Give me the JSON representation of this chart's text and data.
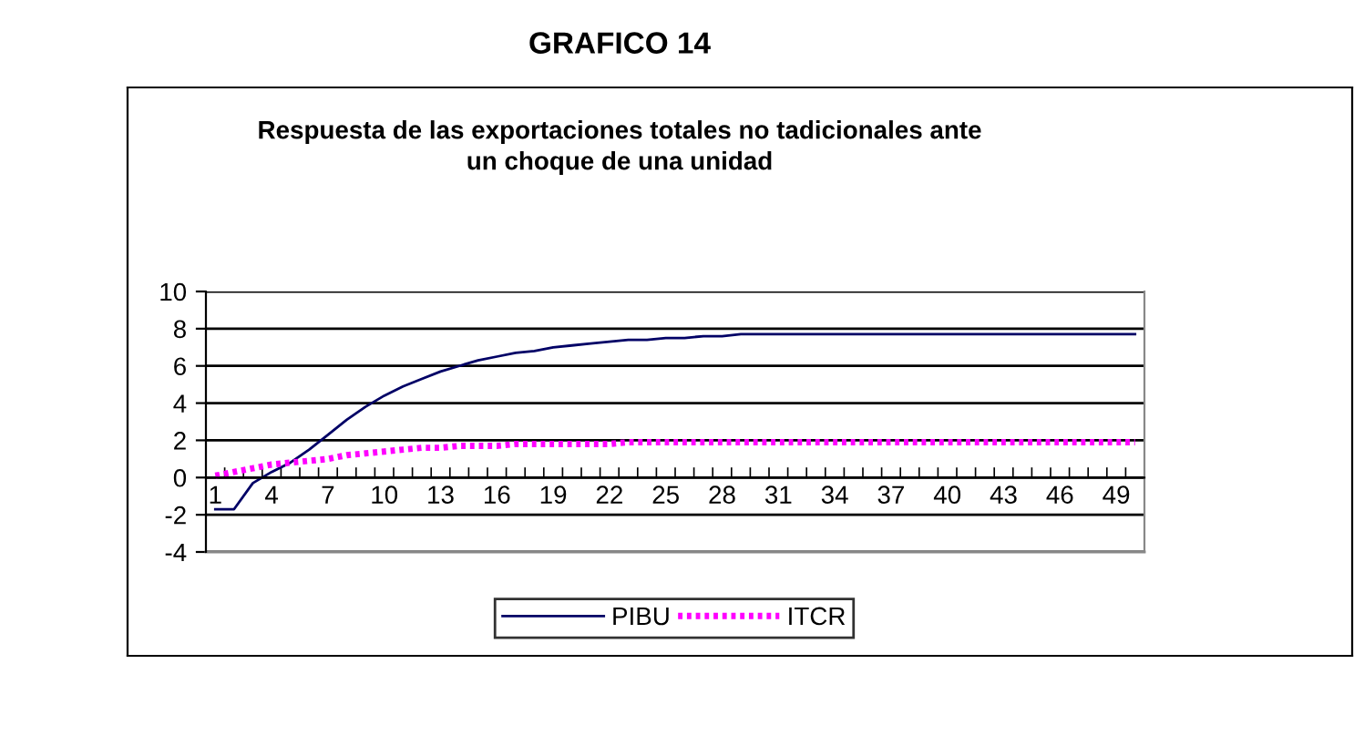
{
  "chart_data": {
    "type": "line",
    "title": "GRAFICO 14",
    "subtitle": "Respuesta de las exportaciones totales no tadicionales ante\nun choque de una unidad",
    "categories": [
      "1",
      null,
      null,
      "4",
      null,
      null,
      "7",
      null,
      null,
      "10",
      null,
      null,
      "13",
      null,
      null,
      "16",
      null,
      null,
      "19",
      null,
      null,
      "22",
      null,
      null,
      "25",
      null,
      null,
      "28",
      null,
      null,
      "31",
      null,
      null,
      "34",
      null,
      null,
      "37",
      null,
      null,
      "40",
      null,
      null,
      "43",
      null,
      null,
      "46",
      null,
      null,
      "49",
      null
    ],
    "series": [
      {
        "name": "PIBU",
        "color": "#000066",
        "line_style": "solid",
        "values": [
          -1.7,
          -1.7,
          -0.3,
          0.3,
          0.8,
          1.5,
          2.3,
          3.1,
          3.8,
          4.4,
          4.9,
          5.3,
          5.7,
          6.0,
          6.3,
          6.5,
          6.7,
          6.8,
          7.0,
          7.1,
          7.2,
          7.3,
          7.4,
          7.4,
          7.5,
          7.5,
          7.6,
          7.6,
          7.7,
          7.7,
          7.7,
          7.7,
          7.7,
          7.7,
          7.7,
          7.7,
          7.7,
          7.7,
          7.7,
          7.7,
          7.7,
          7.7,
          7.7,
          7.7,
          7.7,
          7.7,
          7.7,
          7.7,
          7.7,
          7.7
        ]
      },
      {
        "name": "ITCR",
        "color": "#ff00ff",
        "line_style": "dotted",
        "values": [
          0.1,
          0.3,
          0.5,
          0.7,
          0.8,
          0.9,
          1.0,
          1.2,
          1.3,
          1.4,
          1.5,
          1.6,
          1.6,
          1.7,
          1.7,
          1.7,
          1.8,
          1.8,
          1.8,
          1.8,
          1.8,
          1.8,
          1.9,
          1.9,
          1.9,
          1.9,
          1.9,
          1.9,
          1.9,
          1.9,
          1.9,
          1.9,
          1.9,
          1.9,
          1.9,
          1.9,
          1.9,
          1.9,
          1.9,
          1.9,
          1.9,
          1.9,
          1.9,
          1.9,
          1.9,
          1.9,
          1.9,
          1.9,
          1.9,
          1.9
        ]
      }
    ],
    "ylim": [
      -4,
      10
    ],
    "yticks": [
      -4,
      -2,
      0,
      2,
      4,
      6,
      8,
      10
    ],
    "grid": "y",
    "legend": "bottom",
    "marker": "none"
  }
}
